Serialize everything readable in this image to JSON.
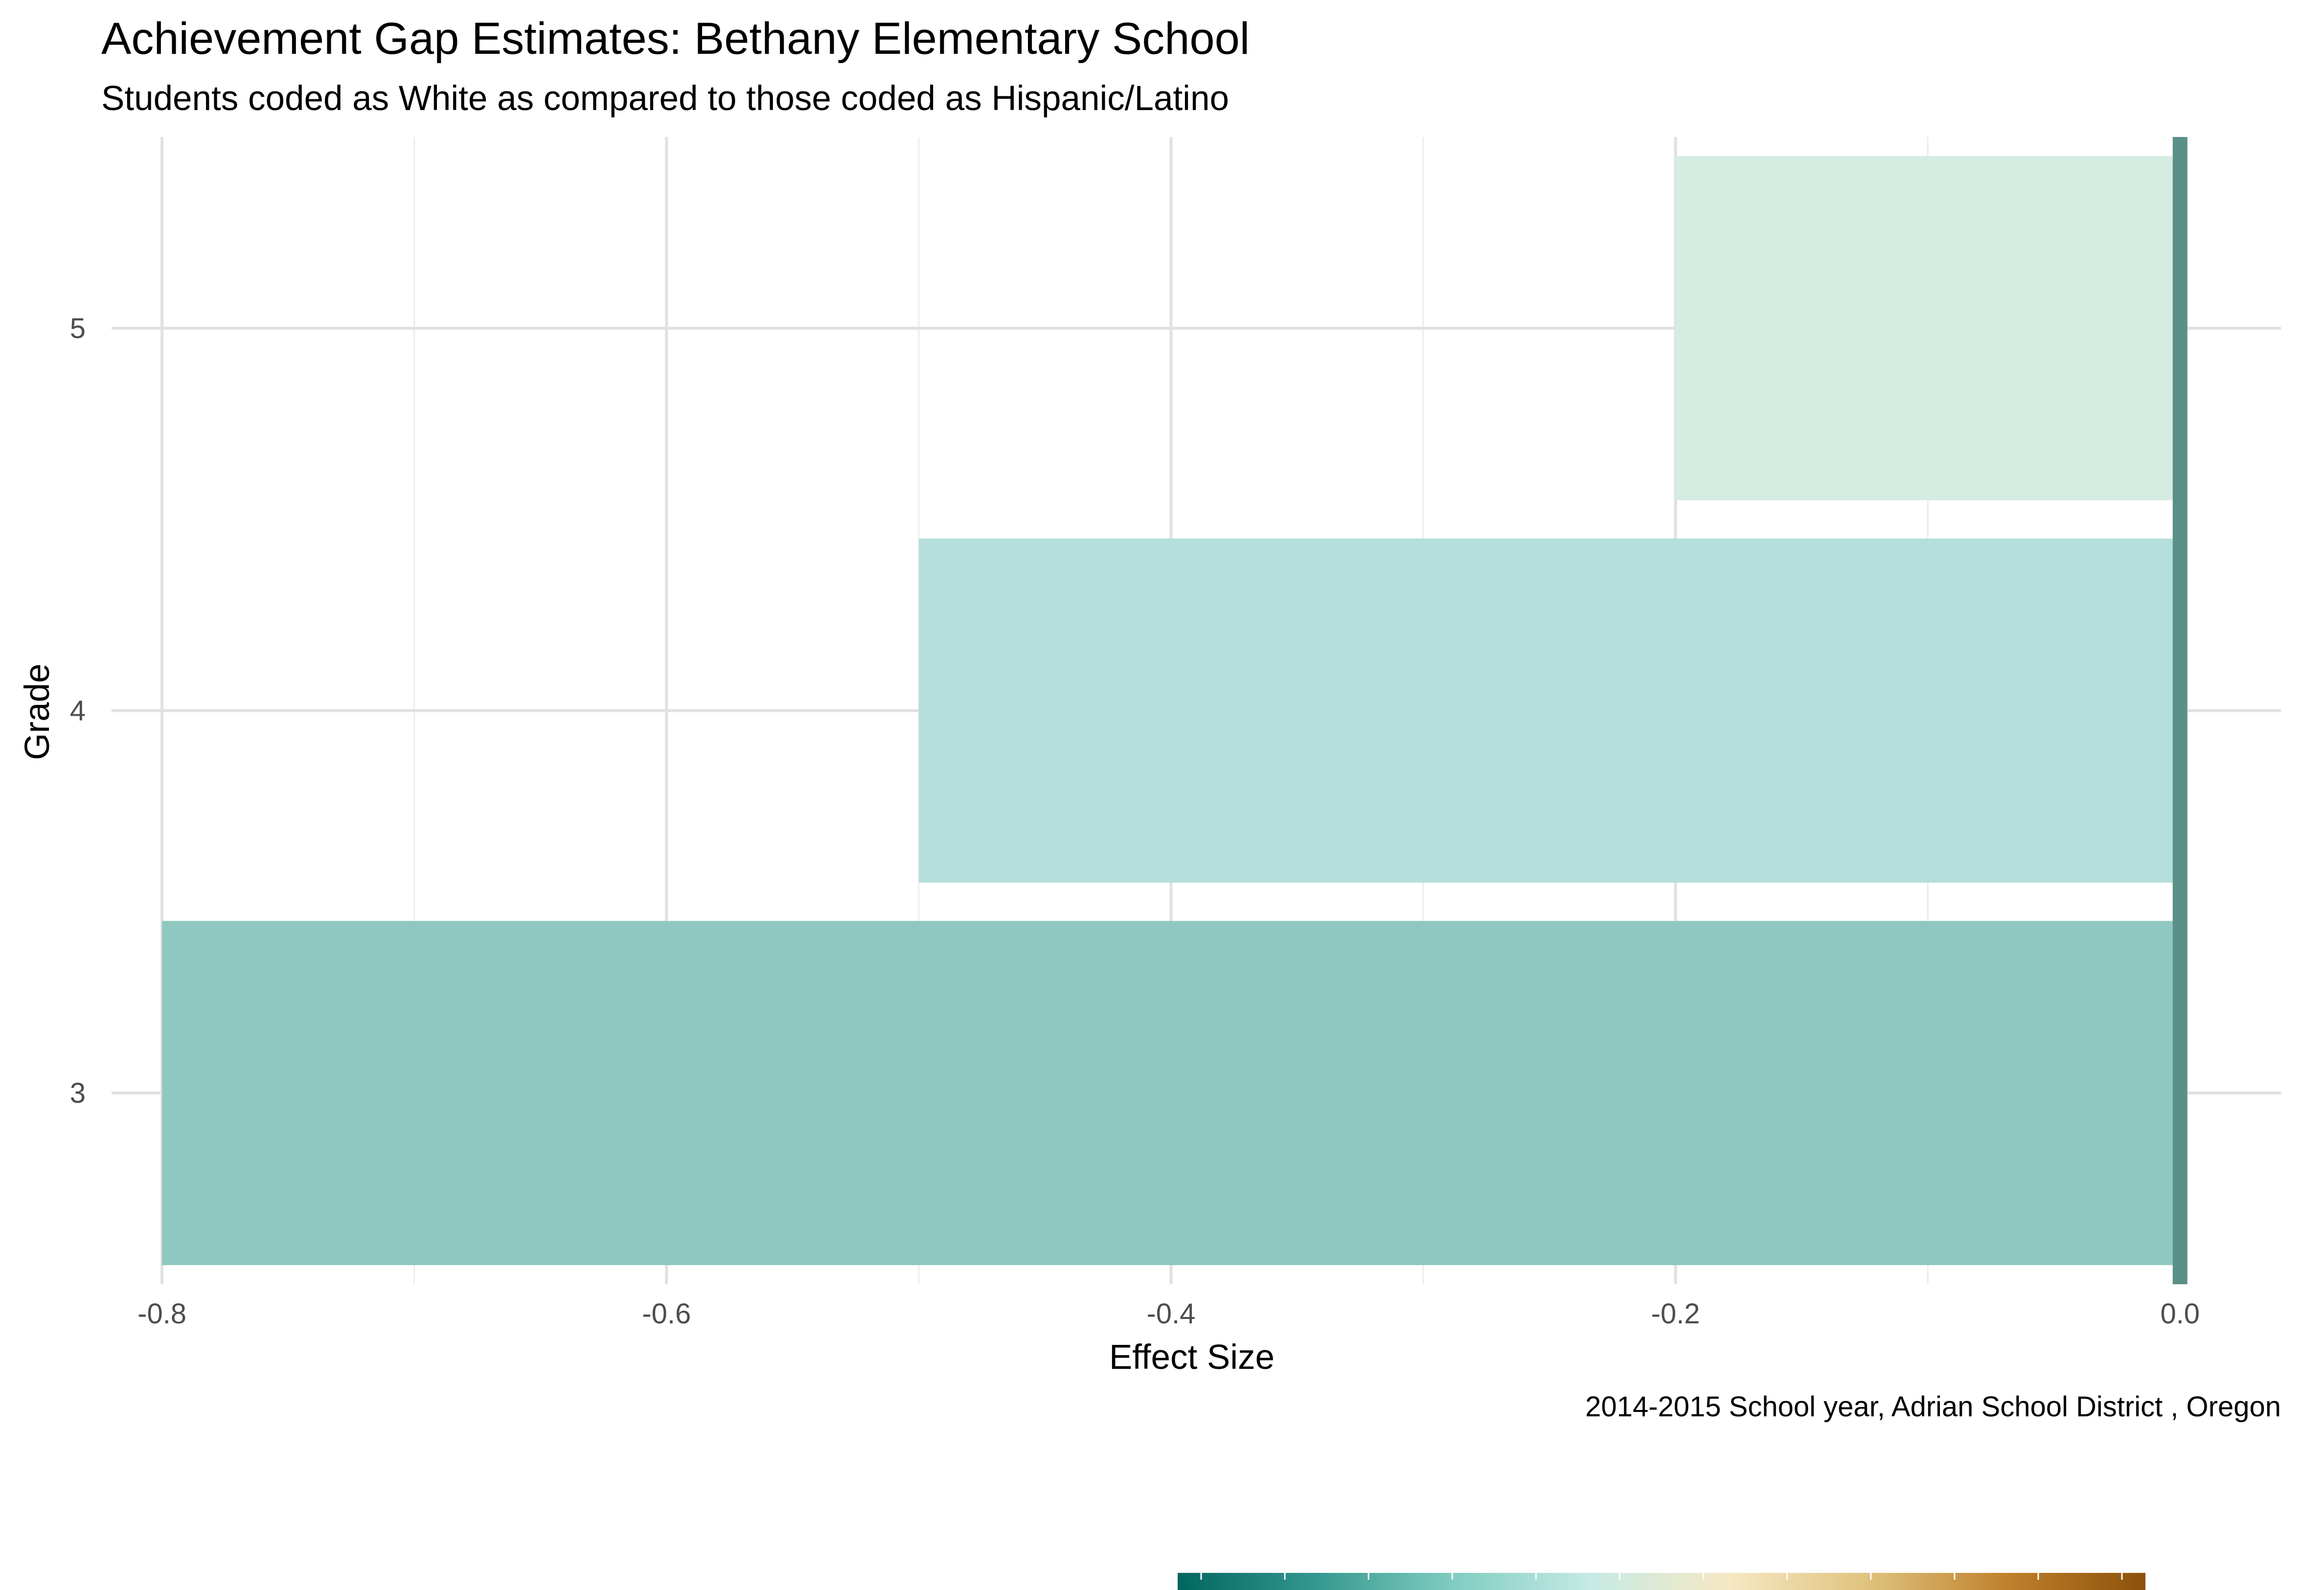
{
  "chart_data": {
    "type": "bar",
    "orientation": "horizontal",
    "title": "Achievement Gap Estimates: Bethany Elementary School",
    "subtitle": "Students coded as White as compared to those coded as Hispanic/Latino",
    "caption": "2014-2015 School year,  Adrian School District , Oregon",
    "xlabel": "Effect Size",
    "ylabel": "Grade",
    "categories": [
      "3",
      "4",
      "5"
    ],
    "values": [
      -0.8,
      -0.5,
      -0.2
    ],
    "bar_colors": [
      "#8fc8c0",
      "#b5dfda",
      "#d5ece2"
    ],
    "xlim": [
      -0.82,
      0.04
    ],
    "x_ticks": [
      -0.8,
      -0.6,
      -0.4,
      -0.2,
      0.0
    ],
    "x_tick_labels": [
      "-0.8",
      "-0.6",
      "-0.4",
      "-0.2",
      "0.0"
    ],
    "x_minor_ticks": [
      -0.7,
      -0.5,
      -0.3,
      -0.1
    ],
    "reference_line": {
      "x": 0.0,
      "color": "#5a9088"
    },
    "grid": true,
    "legend": {
      "type": "colorbar",
      "placement": "bottom",
      "colors": [
        "#01665e",
        "#35978f",
        "#80cdc1",
        "#c7eae5",
        "#f6e8c3",
        "#dfc27d",
        "#bf812d",
        "#8c510a"
      ]
    }
  }
}
